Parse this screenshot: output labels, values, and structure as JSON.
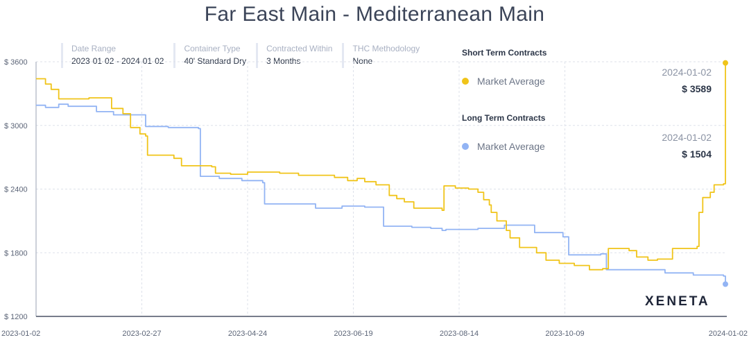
{
  "title": "Far East Main - Mediterranean Main",
  "filters": [
    {
      "label": "Date Range",
      "value": "2023-01-02 - 2024-01-02"
    },
    {
      "label": "Container Type",
      "value": "40' Standard Dry"
    },
    {
      "label": "Contracted Within",
      "value": "3 Months"
    },
    {
      "label": "THC Methodology",
      "value": "None"
    }
  ],
  "legend": {
    "short": {
      "heading": "Short Term Contracts",
      "name": "Market Average",
      "date": "2024-01-02",
      "value": "$ 3589"
    },
    "long": {
      "heading": "Long Term Contracts",
      "name": "Market Average",
      "date": "2024-01-02",
      "value": "$ 1504"
    }
  },
  "logo": "XENETA",
  "colors": {
    "short": "#f0c419",
    "long": "#92b4f4",
    "grid": "#dde1ea",
    "axis": "#5b6477"
  },
  "chart_data": {
    "type": "line",
    "title": "Far East Main - Mediterranean Main",
    "xlim": [
      "2023-01-02",
      "2024-01-02"
    ],
    "ylim": [
      1200,
      3600
    ],
    "yticks": [
      1200,
      1800,
      2400,
      3000,
      3600
    ],
    "ytick_labels": [
      "$ 1200",
      "$ 1800",
      "$ 2400",
      "$ 3000",
      "$ 3600"
    ],
    "xticks": [
      "2023-01-02",
      "2023-02-27",
      "2023-04-24",
      "2023-06-19",
      "2023-08-14",
      "2023-10-09",
      "2024-01-02"
    ],
    "grid": true,
    "step": true,
    "series": [
      {
        "name": "Short Term Contracts - Market Average",
        "color": "#f0c419",
        "points": [
          [
            "2023-01-02",
            3440
          ],
          [
            "2023-01-07",
            3390
          ],
          [
            "2023-01-10",
            3340
          ],
          [
            "2023-01-14",
            3250
          ],
          [
            "2023-01-30",
            3260
          ],
          [
            "2023-02-11",
            3160
          ],
          [
            "2023-02-17",
            3110
          ],
          [
            "2023-02-21",
            2980
          ],
          [
            "2023-02-26",
            2920
          ],
          [
            "2023-03-01",
            2900
          ],
          [
            "2023-03-02",
            2720
          ],
          [
            "2023-03-16",
            2690
          ],
          [
            "2023-03-20",
            2620
          ],
          [
            "2023-04-05",
            2610
          ],
          [
            "2023-04-07",
            2550
          ],
          [
            "2023-04-15",
            2540
          ],
          [
            "2023-04-24",
            2560
          ],
          [
            "2023-05-11",
            2550
          ],
          [
            "2023-05-21",
            2530
          ],
          [
            "2023-06-09",
            2510
          ],
          [
            "2023-06-16",
            2480
          ],
          [
            "2023-06-21",
            2500
          ],
          [
            "2023-06-25",
            2470
          ],
          [
            "2023-07-01",
            2440
          ],
          [
            "2023-07-08",
            2340
          ],
          [
            "2023-07-12",
            2310
          ],
          [
            "2023-07-16",
            2280
          ],
          [
            "2023-07-21",
            2220
          ],
          [
            "2023-08-05",
            2200
          ],
          [
            "2023-08-06",
            2430
          ],
          [
            "2023-08-12",
            2410
          ],
          [
            "2023-08-19",
            2400
          ],
          [
            "2023-08-24",
            2370
          ],
          [
            "2023-08-27",
            2300
          ],
          [
            "2023-08-30",
            2250
          ],
          [
            "2023-08-31",
            2180
          ],
          [
            "2023-09-03",
            2100
          ],
          [
            "2023-09-08",
            2010
          ],
          [
            "2023-09-10",
            1940
          ],
          [
            "2023-09-15",
            1850
          ],
          [
            "2023-09-24",
            1800
          ],
          [
            "2023-09-29",
            1730
          ],
          [
            "2023-10-06",
            1700
          ],
          [
            "2023-10-14",
            1680
          ],
          [
            "2023-10-22",
            1640
          ],
          [
            "2023-10-29",
            1650
          ],
          [
            "2023-11-01",
            1840
          ],
          [
            "2023-11-12",
            1820
          ],
          [
            "2023-11-16",
            1760
          ],
          [
            "2023-11-22",
            1730
          ],
          [
            "2023-11-27",
            1740
          ],
          [
            "2023-12-05",
            1840
          ],
          [
            "2023-12-18",
            1860
          ],
          [
            "2023-12-19",
            2180
          ],
          [
            "2023-12-21",
            2320
          ],
          [
            "2023-12-25",
            2370
          ],
          [
            "2023-12-27",
            2440
          ],
          [
            "2024-01-01",
            2450
          ],
          [
            "2024-01-02",
            3589
          ]
        ]
      },
      {
        "name": "Long Term Contracts - Market Average",
        "color": "#92b4f4",
        "points": [
          [
            "2023-01-02",
            3190
          ],
          [
            "2023-01-07",
            3170
          ],
          [
            "2023-01-14",
            3200
          ],
          [
            "2023-01-19",
            3180
          ],
          [
            "2023-02-01",
            3180
          ],
          [
            "2023-02-03",
            3130
          ],
          [
            "2023-02-12",
            3100
          ],
          [
            "2023-03-01",
            2990
          ],
          [
            "2023-03-13",
            2980
          ],
          [
            "2023-03-29",
            2970
          ],
          [
            "2023-03-30",
            2520
          ],
          [
            "2023-04-09",
            2500
          ],
          [
            "2023-04-21",
            2480
          ],
          [
            "2023-05-02",
            2460
          ],
          [
            "2023-05-03",
            2260
          ],
          [
            "2023-05-30",
            2220
          ],
          [
            "2023-06-13",
            2240
          ],
          [
            "2023-06-25",
            2230
          ],
          [
            "2023-07-05",
            2050
          ],
          [
            "2023-07-20",
            2040
          ],
          [
            "2023-07-30",
            2030
          ],
          [
            "2023-08-05",
            2010
          ],
          [
            "2023-08-07",
            2020
          ],
          [
            "2023-08-24",
            2030
          ],
          [
            "2023-09-07",
            2060
          ],
          [
            "2023-09-23",
            1990
          ],
          [
            "2023-10-08",
            1950
          ],
          [
            "2023-10-11",
            1780
          ],
          [
            "2023-10-28",
            1790
          ],
          [
            "2023-10-31",
            1640
          ],
          [
            "2023-11-26",
            1640
          ],
          [
            "2023-12-01",
            1610
          ],
          [
            "2023-12-12",
            1610
          ],
          [
            "2023-12-16",
            1590
          ],
          [
            "2024-01-01",
            1580
          ],
          [
            "2024-01-02",
            1504
          ]
        ]
      }
    ]
  }
}
